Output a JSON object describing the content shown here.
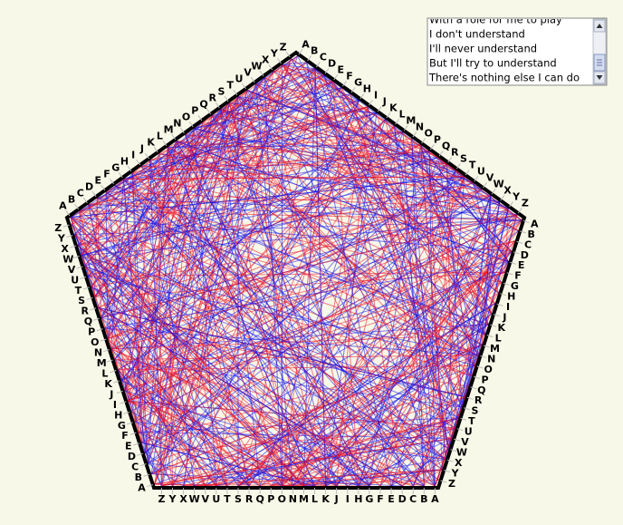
{
  "list_box": {
    "items": [
      "With a role for me to play",
      "I don't understand",
      "I'll never understand",
      "But I'll try to understand",
      "There's nothing else I can do"
    ]
  },
  "pentagon": {
    "sides": [
      [
        "A",
        "B",
        "C",
        "D",
        "E",
        "F",
        "G",
        "H",
        "I",
        "J",
        "K",
        "L",
        "M",
        "N",
        "O",
        "P",
        "Q",
        "R",
        "S",
        "T",
        "U",
        "V",
        "W",
        "X",
        "Y",
        "Z"
      ],
      [
        "A",
        "B",
        "C",
        "D",
        "E",
        "F",
        "G",
        "H",
        "I",
        "J",
        "K",
        "L",
        "M",
        "N",
        "O",
        "P",
        "Q",
        "R",
        "S",
        "T",
        "U",
        "V",
        "W",
        "X",
        "Y",
        "Z"
      ],
      [
        "A",
        "B",
        "C",
        "D",
        "E",
        "F",
        "G",
        "H",
        "I",
        "J",
        "K",
        "L",
        "M",
        "N",
        "O",
        "P",
        "Q",
        "R",
        "S",
        "T",
        "U",
        "V",
        "W",
        "X",
        "Y",
        "Z"
      ],
      [
        "A",
        "B",
        "C",
        "D",
        "E",
        "F",
        "G",
        "H",
        "I",
        "J",
        "K",
        "L",
        "M",
        "N",
        "O",
        "P",
        "Q",
        "R",
        "S",
        "T",
        "U",
        "V",
        "W",
        "X",
        "Y",
        "Z"
      ],
      [
        "A",
        "B",
        "C",
        "D",
        "E",
        "F",
        "G",
        "H",
        "I",
        "J",
        "K",
        "L",
        "M",
        "N",
        "O",
        "P",
        "Q",
        "R",
        "S",
        "T",
        "U",
        "V",
        "W",
        "X",
        "Y",
        "Z"
      ]
    ]
  }
}
